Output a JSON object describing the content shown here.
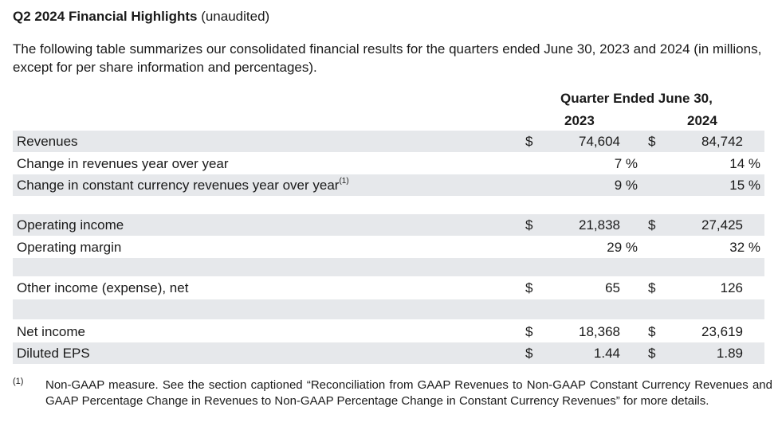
{
  "title": {
    "bold": "Q2 2024 Financial Highlights",
    "normal": "(unaudited)"
  },
  "intro": "The following table summarizes our consolidated financial results for the quarters ended June 30, 2023 and 2024 (in millions, except for per share information and percentages).",
  "table": {
    "period_header": "Quarter Ended June 30,",
    "col1_header": "2023",
    "col2_header": "2024",
    "rows": [
      {
        "label": "Revenues",
        "cur1": "$",
        "v1": "74,604",
        "cur2": "$",
        "v2": "84,742"
      },
      {
        "label": "Change in revenues year over year",
        "p1": "7 %",
        "p2": "14 %"
      },
      {
        "label": "Change in constant currency revenues year over year",
        "sup": "(1)",
        "p1": "9 %",
        "p2": "15 %"
      },
      {
        "label": "Operating income",
        "cur1": "$",
        "v1": "21,838",
        "cur2": "$",
        "v2": "27,425"
      },
      {
        "label": "Operating margin",
        "p1": "29 %",
        "p2": "32 %"
      },
      {
        "label": "Other income (expense), net",
        "cur1": "$",
        "v1": "65",
        "cur2": "$",
        "v2": "126"
      },
      {
        "label": "Net income",
        "cur1": "$",
        "v1": "18,368",
        "cur2": "$",
        "v2": "23,619"
      },
      {
        "label": "Diluted EPS",
        "cur1": "$",
        "v1": "1.44",
        "cur2": "$",
        "v2": "1.89"
      }
    ]
  },
  "footnote": {
    "mark": "(1)",
    "text": "Non-GAAP measure. See the section captioned “Reconciliation from GAAP Revenues to Non-GAAP Constant Currency Revenues and GAAP Percentage Change in Revenues to Non-GAAP Percentage Change in Constant Currency Revenues” for more details."
  }
}
